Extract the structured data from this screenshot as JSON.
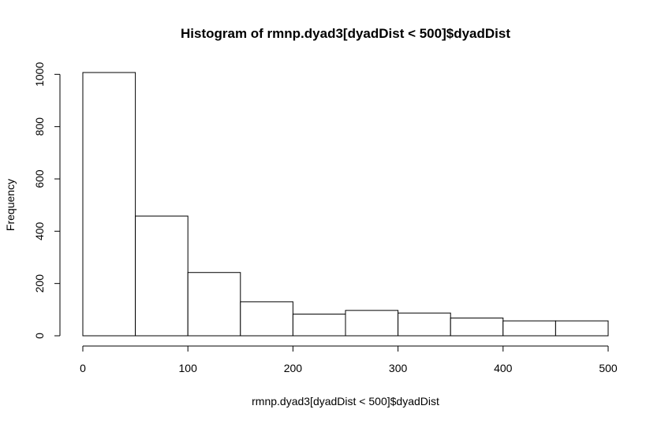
{
  "chart_data": {
    "type": "bar",
    "title": "Histogram of rmnp.dyad3[dyadDist < 500]$dyadDist",
    "xlabel": "rmnp.dyad3[dyadDist < 500]$dyadDist",
    "ylabel": "Frequency",
    "bin_edges": [
      0,
      50,
      100,
      150,
      200,
      250,
      300,
      350,
      400,
      450,
      500
    ],
    "values": [
      1007,
      458,
      242,
      130,
      83,
      97,
      87,
      68,
      57,
      57
    ],
    "xlim": [
      0,
      500
    ],
    "ylim": [
      0,
      1007
    ],
    "x_ticks": [
      0,
      100,
      200,
      300,
      400,
      500
    ],
    "y_ticks": [
      0,
      200,
      400,
      600,
      800,
      1000
    ],
    "grid": false,
    "colors": {
      "bar_fill": "#ffffff",
      "bar_stroke": "#000000",
      "axis": "#000000"
    }
  }
}
